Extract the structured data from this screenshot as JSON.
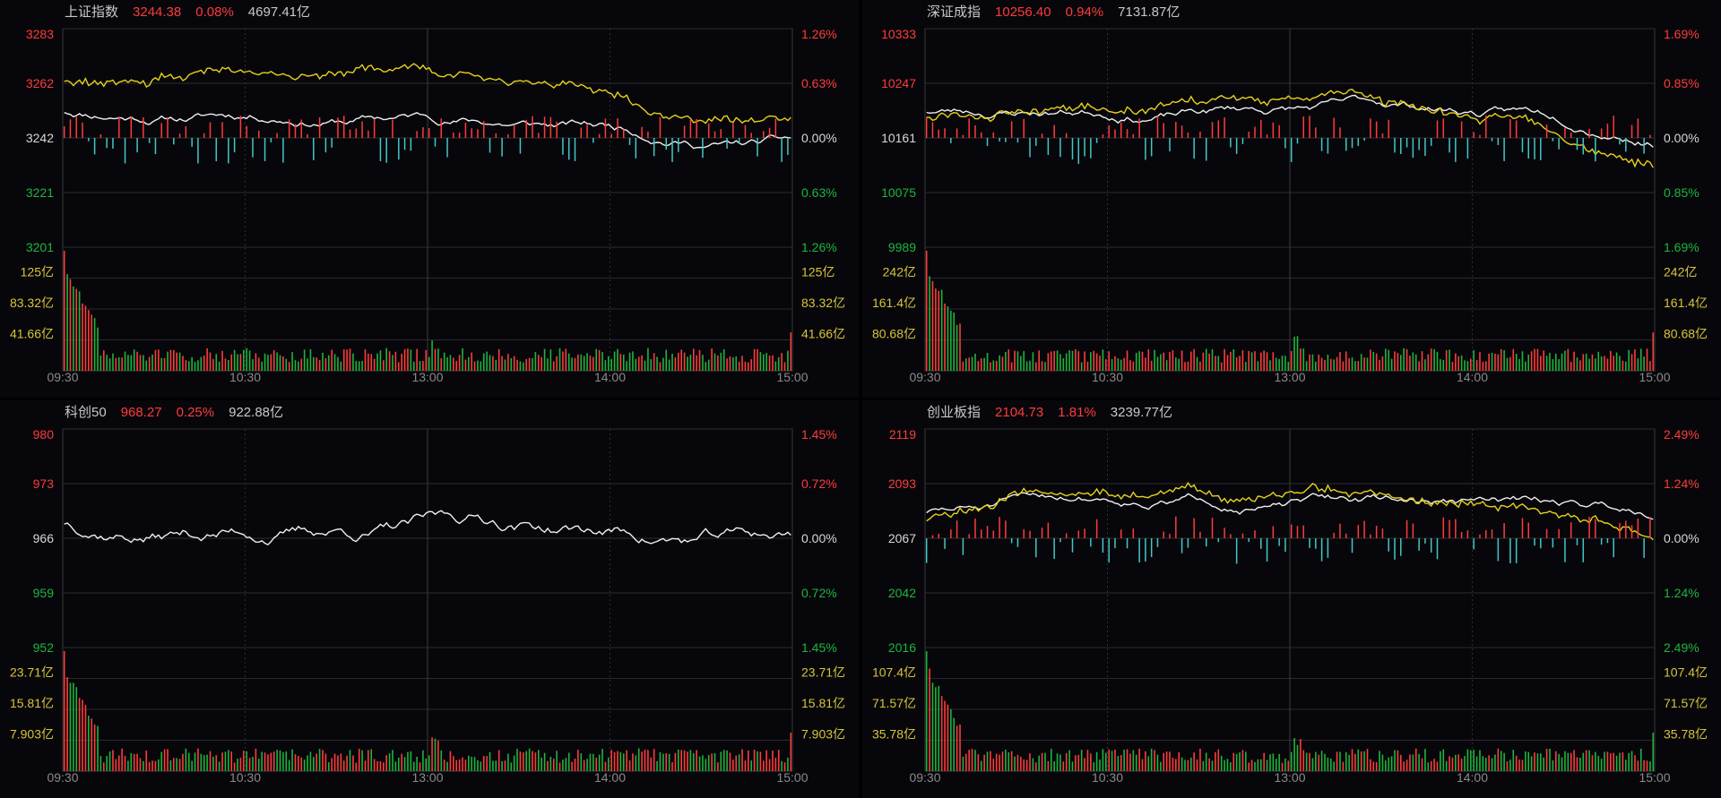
{
  "colors": {
    "up": "#ff3b3b",
    "down": "#1db53c",
    "flat": "#d8d8d8",
    "vol_label": "#d8c43a",
    "time": "#8a8a8a",
    "white_line": "#f0f0f0",
    "yellow_line": "#e6d21a",
    "teal": "#45c6c6"
  },
  "panels": [
    {
      "name": "上证指数",
      "price": "3244.38",
      "pct": "0.08%",
      "amount": "4697.41亿",
      "price_labels": [
        "3283",
        "3262",
        "3242",
        "3221",
        "3201"
      ],
      "pct_labels": [
        "1.26%",
        "0.63%",
        "0.00%",
        "0.63%",
        "1.26%"
      ],
      "vol_labels": [
        "125亿",
        "83.32亿",
        "41.66亿"
      ],
      "time_labels": [
        "09:30",
        "10:30",
        "13:00",
        "14:00",
        "15:00"
      ],
      "has_yellow": true,
      "seed": 11
    },
    {
      "name": "深证成指",
      "price": "10256.40",
      "pct": "0.94%",
      "amount": "7131.87亿",
      "price_labels": [
        "10333",
        "10247",
        "10161",
        "10075",
        "9989"
      ],
      "pct_labels": [
        "1.69%",
        "0.85%",
        "0.00%",
        "0.85%",
        "1.69%"
      ],
      "vol_labels": [
        "242亿",
        "161.4亿",
        "80.68亿"
      ],
      "time_labels": [
        "09:30",
        "10:30",
        "13:00",
        "14:00",
        "15:00"
      ],
      "has_yellow": true,
      "seed": 23
    },
    {
      "name": "科创50",
      "price": "968.27",
      "pct": "0.25%",
      "amount": "922.88亿",
      "price_labels": [
        "980",
        "973",
        "966",
        "959",
        "952"
      ],
      "pct_labels": [
        "1.45%",
        "0.72%",
        "0.00%",
        "0.72%",
        "1.45%"
      ],
      "vol_labels": [
        "23.71亿",
        "15.81亿",
        "7.903亿"
      ],
      "time_labels": [
        "09:30",
        "10:30",
        "13:00",
        "14:00",
        "15:00"
      ],
      "has_yellow": false,
      "seed": 37
    },
    {
      "name": "创业板指",
      "price": "2104.73",
      "pct": "1.81%",
      "amount": "3239.77亿",
      "price_labels": [
        "2119",
        "2093",
        "2067",
        "2042",
        "2016"
      ],
      "pct_labels": [
        "2.49%",
        "1.24%",
        "0.00%",
        "1.24%",
        "2.49%"
      ],
      "vol_labels": [
        "107.4亿",
        "71.57亿",
        "35.78亿"
      ],
      "time_labels": [
        "09:30",
        "10:30",
        "13:00",
        "14:00",
        "15:00"
      ],
      "has_yellow": true,
      "seed": 51
    }
  ]
}
